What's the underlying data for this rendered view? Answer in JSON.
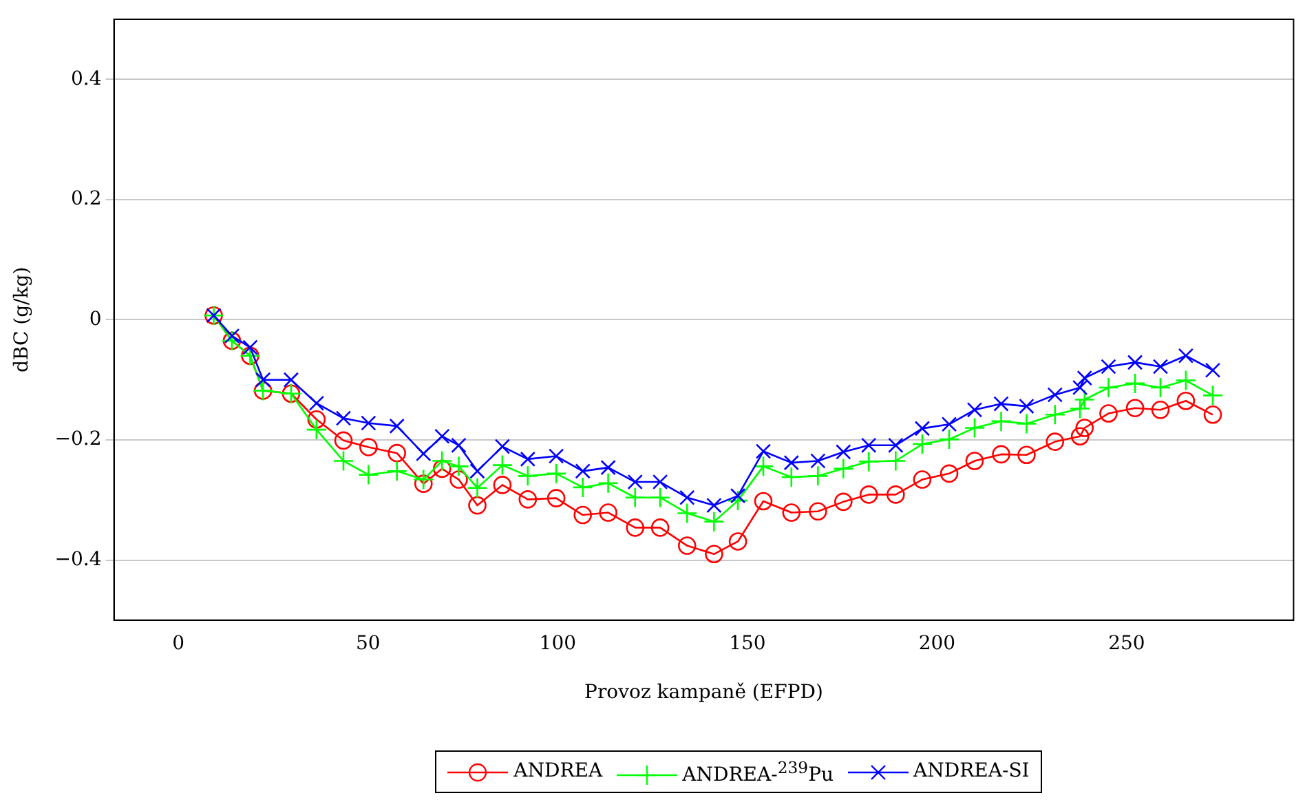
{
  "chart_data": {
    "type": "line",
    "xlabel": "Provoz kampaně (EFPD)",
    "ylabel": "dBC (g/kg)",
    "x": [
      9.3,
      14.1,
      18.9,
      22.3,
      29.7,
      36.4,
      43.5,
      50.1,
      57.6,
      64.6,
      69.5,
      73.9,
      78.8,
      85.4,
      92.1,
      99.6,
      106.6,
      113.3,
      120.4,
      127.0,
      134.1,
      141.2,
      147.5,
      154.2,
      161.6,
      168.6,
      175.3,
      182.0,
      189.1,
      196.1,
      203.2,
      209.9,
      216.9,
      223.6,
      231.1,
      237.7,
      238.9,
      245.2,
      252.2,
      258.9,
      265.6,
      272.7
    ],
    "series": [
      {
        "name": "ANDREA",
        "color": "#ff0000",
        "marker": "circle",
        "values": [
          0.007,
          -0.035,
          -0.06,
          -0.118,
          -0.123,
          -0.166,
          -0.201,
          -0.212,
          -0.222,
          -0.273,
          -0.248,
          -0.266,
          -0.309,
          -0.275,
          -0.299,
          -0.297,
          -0.325,
          -0.321,
          -0.346,
          -0.346,
          -0.376,
          -0.39,
          -0.369,
          -0.302,
          -0.321,
          -0.319,
          -0.303,
          -0.291,
          -0.291,
          -0.266,
          -0.256,
          -0.235,
          -0.224,
          -0.225,
          -0.203,
          -0.194,
          -0.18,
          -0.156,
          -0.147,
          -0.15,
          -0.135,
          -0.158
        ]
      },
      {
        "name": "ANDREA-$^{239}$Pu",
        "color": "#00ff00",
        "marker": "cross",
        "values": [
          0.007,
          -0.035,
          -0.06,
          -0.118,
          -0.123,
          -0.183,
          -0.235,
          -0.258,
          -0.252,
          -0.266,
          -0.235,
          -0.244,
          -0.28,
          -0.242,
          -0.26,
          -0.256,
          -0.279,
          -0.272,
          -0.296,
          -0.296,
          -0.322,
          -0.336,
          -0.301,
          -0.244,
          -0.262,
          -0.26,
          -0.248,
          -0.236,
          -0.235,
          -0.207,
          -0.199,
          -0.18,
          -0.169,
          -0.173,
          -0.158,
          -0.148,
          -0.133,
          -0.113,
          -0.106,
          -0.113,
          -0.101,
          -0.126
        ]
      },
      {
        "name": "ANDREA-SI",
        "color": "#0000ff",
        "marker": "x",
        "values": [
          0.007,
          -0.027,
          -0.046,
          -0.1,
          -0.1,
          -0.139,
          -0.164,
          -0.172,
          -0.177,
          -0.223,
          -0.194,
          -0.209,
          -0.252,
          -0.211,
          -0.232,
          -0.227,
          -0.252,
          -0.246,
          -0.27,
          -0.27,
          -0.296,
          -0.309,
          -0.293,
          -0.219,
          -0.238,
          -0.235,
          -0.22,
          -0.209,
          -0.209,
          -0.181,
          -0.174,
          -0.15,
          -0.14,
          -0.144,
          -0.125,
          -0.113,
          -0.097,
          -0.078,
          -0.071,
          -0.078,
          -0.06,
          -0.084
        ]
      }
    ],
    "xlim": [
      -17,
      294
    ],
    "xticks": [
      0,
      50,
      100,
      150,
      200,
      250
    ],
    "ylim": [
      -0.5,
      0.5
    ],
    "yticks": [
      {
        "value": -0.4,
        "label": "−0.4"
      },
      {
        "value": -0.2,
        "label": "−0.2"
      },
      0,
      0.2,
      0.4
    ],
    "grid": "y",
    "legend": "bottom",
    "line_style": "solid"
  }
}
